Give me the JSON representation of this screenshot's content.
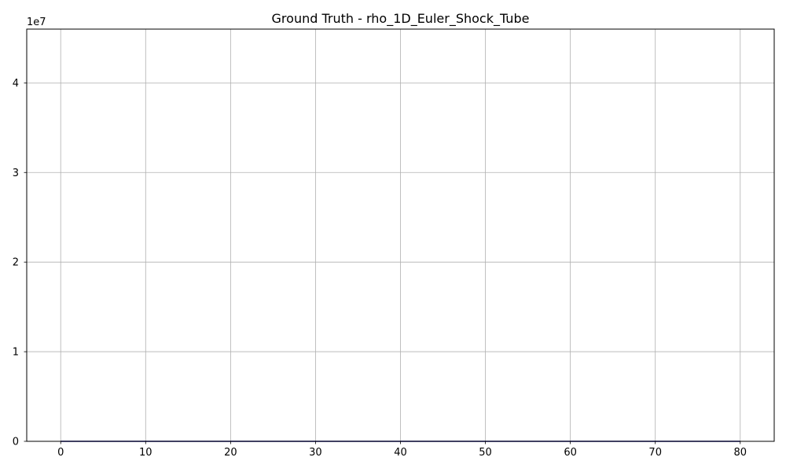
{
  "chart_data": {
    "type": "line",
    "title": "Ground Truth - rho_1D_Euler_Shock_Tube",
    "xlabel": "",
    "ylabel": "",
    "y_offset_label": "1e7",
    "x_ticks": [
      "0",
      "10",
      "20",
      "30",
      "40",
      "50",
      "60",
      "70",
      "80"
    ],
    "y_ticks": [
      "0",
      "1",
      "2",
      "3",
      "4"
    ],
    "xlim": [
      -4,
      84
    ],
    "ylim": [
      0,
      46000000
    ],
    "grid": true,
    "line_color": "#00008b",
    "series": [
      {
        "x": [
          0,
          10,
          20,
          30,
          40,
          50,
          60,
          70,
          80
        ],
        "y": [
          0,
          0,
          0,
          0,
          0,
          0,
          0,
          0,
          0
        ]
      }
    ]
  }
}
